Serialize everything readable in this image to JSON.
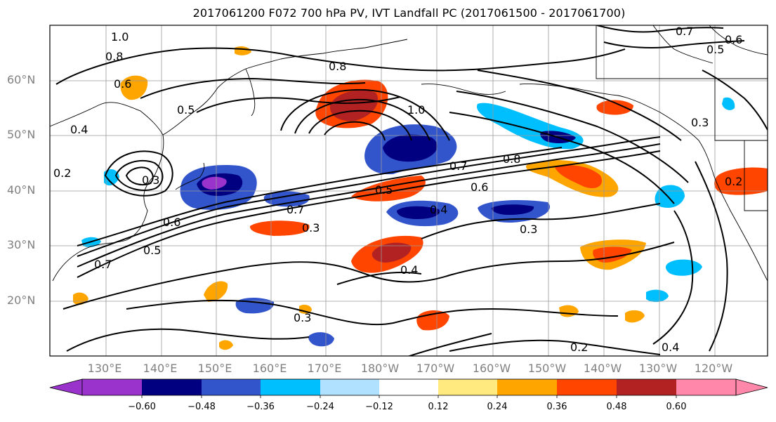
{
  "title": "2017061200 F072 700 hPa PV, IVT Landfall PC (2017061500 - 2017061700)",
  "lat_labels": [
    "60°N",
    "50°N",
    "40°N",
    "30°N",
    "20°N"
  ],
  "lon_labels": [
    "130°E",
    "140°E",
    "150°E",
    "160°E",
    "170°E",
    "180°W",
    "170°W",
    "160°W",
    "150°W",
    "140°W",
    "130°W",
    "120°W"
  ],
  "contour_labels": [
    "1.0",
    "0.8",
    "0.6",
    "0.5",
    "0.4",
    "0.3",
    "0.2",
    "0.7",
    "1.0",
    "0.8",
    "0.7",
    "0.6",
    "0.5",
    "0.4",
    "0.3",
    "0.8",
    "0.7",
    "0.6",
    "0.5",
    "0.3",
    "0.2",
    "0.4",
    "0.3",
    "0.2",
    "0.7",
    "0.6",
    "0.5",
    "0.4",
    "0.3"
  ],
  "colorbar": {
    "tick_labels": [
      "−0.60",
      "−0.48",
      "−0.36",
      "−0.24",
      "−0.12",
      "0.12",
      "0.24",
      "0.36",
      "0.48",
      "0.60"
    ],
    "colors": [
      "#9933cc",
      "#000080",
      "#3355cc",
      "#00bfff",
      "#b0e2ff",
      "#ffffff",
      "#ffea80",
      "#ffa500",
      "#ff4500",
      "#b22222",
      "#ff88aa"
    ]
  }
}
